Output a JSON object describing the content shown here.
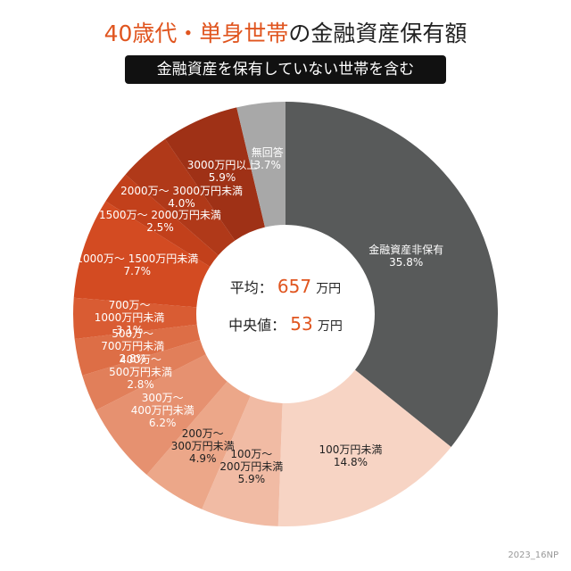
{
  "chart_data": {
    "type": "donut",
    "title": {
      "highlight": "40歳代・単身世帯",
      "rest": "の金融資産保有額"
    },
    "subtitle": "金融資産を保有していない世帯を含む",
    "categories": [
      "金融資産非保有",
      "100万円未満",
      "100万～\n200万円未満",
      "200万～\n300万円未満",
      "300万～\n400万円未満",
      "400万～\n500万円未満",
      "500万～\n700万円未満",
      "700万～\n1000万円未満",
      "1000万～ 1500万円未満",
      "1500万～ 2000万円未満",
      "2000万～ 3000万円未満",
      "3000万円以上",
      "無回答"
    ],
    "values": [
      35.8,
      14.8,
      5.9,
      4.9,
      6.2,
      2.8,
      2.8,
      3.1,
      7.7,
      2.5,
      4.0,
      5.9,
      3.7
    ],
    "value_labels": [
      "35.8%",
      "14.8%",
      "5.9%",
      "4.9%",
      "6.2%",
      "2.8%",
      "2.8%",
      "3.1%",
      "7.7%",
      "2.5%",
      "4.0%",
      "5.9%",
      "3.7%"
    ],
    "colors": [
      "#585a5a",
      "#f7d4c4",
      "#f1bba4",
      "#eca789",
      "#e69170",
      "#e17f5a",
      "#dd6e46",
      "#d95c33",
      "#d34b22",
      "#c2401b",
      "#b03919",
      "#9f3116",
      "#a8a8a8"
    ],
    "center": {
      "mean_label": "平均：",
      "mean": 657,
      "median_label": "中央値：",
      "median": 53,
      "unit": "万円"
    },
    "source": "2023_16NP"
  }
}
